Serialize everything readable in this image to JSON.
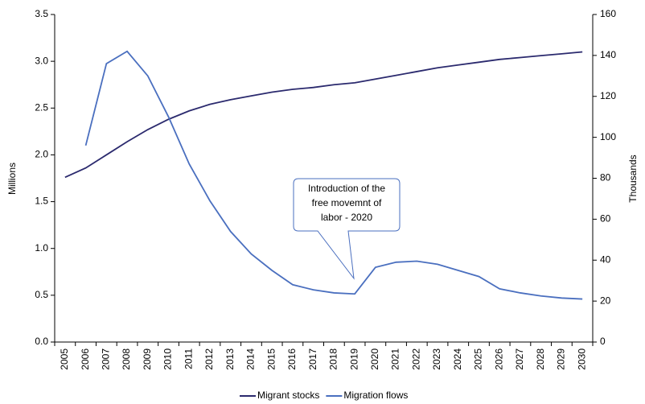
{
  "chart_data": {
    "type": "line",
    "categories": [
      "2005",
      "2006",
      "2007",
      "2008",
      "2009",
      "2010",
      "2011",
      "2012",
      "2013",
      "2014",
      "2015",
      "2016",
      "2017",
      "2018",
      "2019",
      "2020",
      "2021",
      "2022",
      "2023",
      "2024",
      "2025",
      "2026",
      "2027",
      "2028",
      "2029",
      "2030"
    ],
    "series": [
      {
        "name": "Migrant stocks",
        "color": "#2b2a6e",
        "values": [
          1.76,
          1.86,
          2.0,
          2.14,
          2.27,
          2.38,
          2.47,
          2.54,
          2.59,
          2.63,
          2.67,
          2.7,
          2.72,
          2.75,
          2.77,
          2.81,
          2.85,
          2.89,
          2.93,
          2.96,
          2.99,
          3.02,
          3.04,
          3.06,
          3.08,
          3.1
        ]
      },
      {
        "name": "Migration flows",
        "color": "#4a6fbf",
        "axis": "y2",
        "values": [
          null,
          96,
          136,
          142,
          130,
          110,
          87,
          69,
          54,
          43,
          35,
          28,
          25.5,
          24,
          23.5,
          36.5,
          39,
          39.5,
          38,
          35,
          32,
          26,
          24,
          22.5,
          21.5,
          21
        ]
      }
    ],
    "ylabel": "Millions",
    "y2label": "Thousands",
    "ylim": [
      0,
      3.5
    ],
    "yticks": [
      {
        "value": 0,
        "label": "0.0"
      },
      0.5,
      {
        "value": 1,
        "label": "1.0"
      },
      1.5,
      {
        "value": 2,
        "label": "2.0"
      },
      2.5,
      {
        "value": 3,
        "label": "3.0"
      },
      3.5
    ],
    "y2lim": [
      0,
      160
    ],
    "y2ticks": [
      0,
      20,
      40,
      60,
      80,
      100,
      120,
      140,
      160
    ],
    "annotation": [
      "Introduction of the",
      "free movemnt of",
      "labor - 2020"
    ],
    "legend": "bottom"
  }
}
